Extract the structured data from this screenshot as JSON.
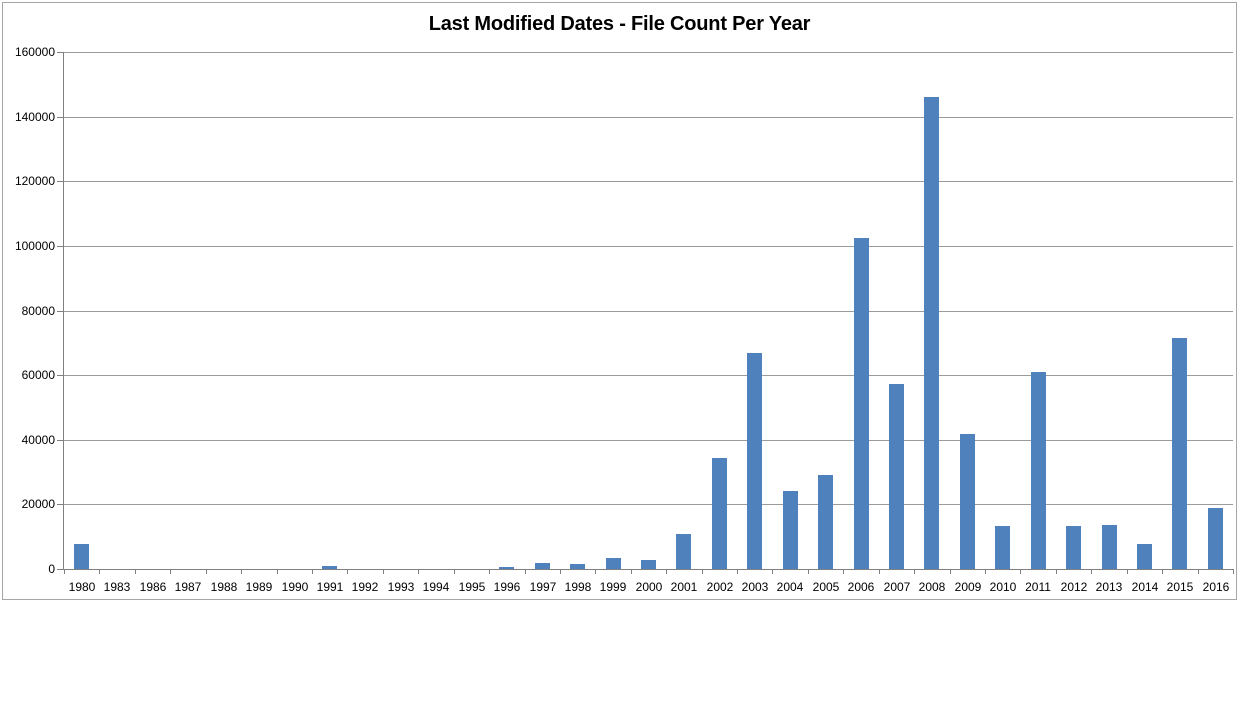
{
  "chart_data": {
    "type": "bar",
    "title": "Last Modified Dates - File Count Per Year",
    "categories": [
      "1980",
      "1983",
      "1986",
      "1987",
      "1988",
      "1989",
      "1990",
      "1991",
      "1992",
      "1993",
      "1994",
      "1995",
      "1996",
      "1997",
      "1998",
      "1999",
      "2000",
      "2001",
      "2002",
      "2003",
      "2004",
      "2005",
      "2006",
      "2007",
      "2008",
      "2009",
      "2010",
      "2011",
      "2012",
      "2013",
      "2014",
      "2015",
      "2016"
    ],
    "values": [
      7800,
      0,
      0,
      0,
      0,
      0,
      0,
      800,
      0,
      0,
      0,
      0,
      700,
      1900,
      1400,
      3400,
      2800,
      10700,
      34400,
      67000,
      24100,
      29200,
      102500,
      57200,
      146000,
      41700,
      13200,
      61000,
      13200,
      13700,
      7700,
      71600,
      18800
    ],
    "xlabel": "",
    "ylabel": "",
    "ylim": [
      0,
      160000
    ],
    "yticks": [
      0,
      20000,
      40000,
      60000,
      80000,
      100000,
      120000,
      140000,
      160000
    ],
    "grid": "horizontal",
    "legend": "none",
    "colors": {
      "bar_fill": "#4F81BD",
      "gridline": "#9b9b9b",
      "axis_line": "#808080",
      "chart_border": "#a6a6a6",
      "text": "#000000",
      "background": "#ffffff"
    }
  }
}
